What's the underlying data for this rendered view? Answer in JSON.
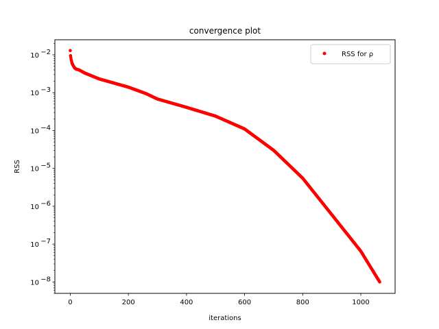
{
  "chart_data": {
    "type": "scatter",
    "title": "convergence plot",
    "xlabel": "iterations",
    "ylabel": "RSS",
    "yscale": "log",
    "xlim": [
      -53,
      1118
    ],
    "ylim": [
      5e-09,
      0.025
    ],
    "xticks": [
      {
        "value": 0,
        "label": "0"
      },
      {
        "value": 200,
        "label": "200"
      },
      {
        "value": 400,
        "label": "400"
      },
      {
        "value": 600,
        "label": "600"
      },
      {
        "value": 800,
        "label": "800"
      },
      {
        "value": 1000,
        "label": "1000"
      }
    ],
    "yticks": [
      {
        "value": 0.01,
        "base": "10",
        "exp": "−2"
      },
      {
        "value": 0.001,
        "base": "10",
        "exp": "−3"
      },
      {
        "value": 0.0001,
        "base": "10",
        "exp": "−4"
      },
      {
        "value": 1e-05,
        "base": "10",
        "exp": "−5"
      },
      {
        "value": 1e-06,
        "base": "10",
        "exp": "−6"
      },
      {
        "value": 1e-07,
        "base": "10",
        "exp": "−7"
      },
      {
        "value": 1e-08,
        "base": "10",
        "exp": "−8"
      }
    ],
    "legend_position": "top-right",
    "series": [
      {
        "name": "RSS for ρ",
        "color": "#ff0000",
        "marker": "point",
        "x_range": [
          0,
          1065
        ],
        "curve_points": [
          [
            0,
            0.013
          ],
          [
            1,
            0.0095
          ],
          [
            3,
            0.0075
          ],
          [
            6,
            0.006
          ],
          [
            10,
            0.0052
          ],
          [
            15,
            0.0045
          ],
          [
            20,
            0.0042
          ],
          [
            30,
            0.004
          ],
          [
            50,
            0.0033
          ],
          [
            100,
            0.0023
          ],
          [
            200,
            0.0014
          ],
          [
            260,
            0.00095
          ],
          [
            300,
            0.00068
          ],
          [
            400,
            0.00041
          ],
          [
            500,
            0.00024
          ],
          [
            600,
            0.00011
          ],
          [
            700,
            3e-05
          ],
          [
            800,
            5.5e-06
          ],
          [
            900,
            6e-07
          ],
          [
            1000,
            6.5e-08
          ],
          [
            1065,
            1e-08
          ]
        ]
      }
    ]
  }
}
